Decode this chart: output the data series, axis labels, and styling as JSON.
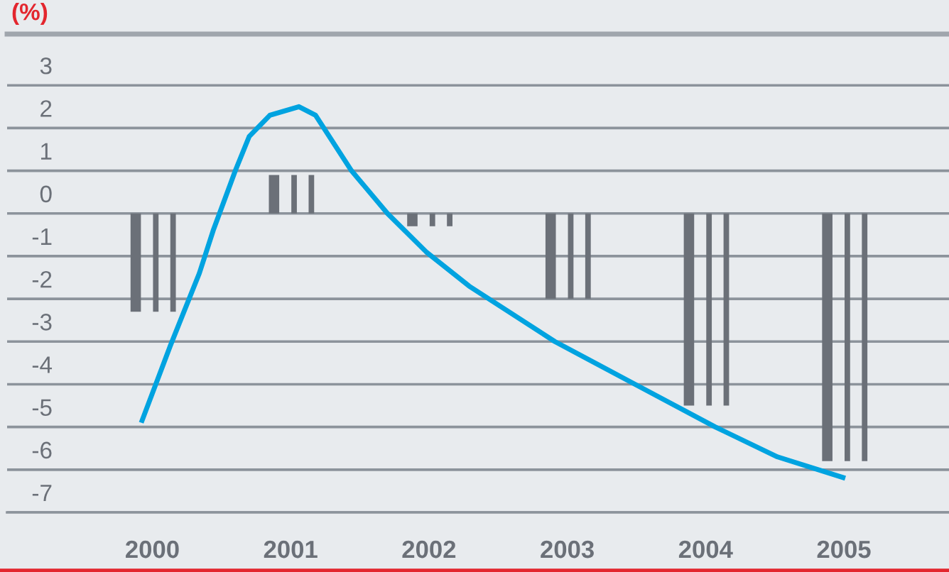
{
  "chart_data": {
    "type": "bar",
    "ylabel": "(%)",
    "x": [
      2000,
      2001,
      2002,
      2003,
      2004,
      2005
    ],
    "series": [
      {
        "color": "#6b7078",
        "values": [
          -2.3,
          0.9,
          -0.3,
          -2.0,
          -4.5,
          -5.8
        ]
      },
      {
        "color": "#6b7078",
        "values": [
          -2.3,
          0.9,
          -0.3,
          -2.0,
          -4.5,
          -5.8
        ]
      },
      {
        "color": "#6b7078",
        "values": [
          -2.3,
          0.9,
          -0.3,
          -2.0,
          -4.5,
          -5.8
        ]
      },
      {
        "type": "line",
        "color": "#00a3e0",
        "x": [
          1999.92,
          2000.13,
          2000.34,
          2000.44,
          2000.6,
          2000.7,
          2000.85,
          2001.06,
          2001.18,
          2001.44,
          2001.7,
          2001.98,
          2002.29,
          2002.91,
          2003.49,
          2004.07,
          2004.52,
          2005.01
        ],
        "values": [
          -4.9,
          -3.1,
          -1.4,
          -0.4,
          1.0,
          1.8,
          2.3,
          2.5,
          2.3,
          1.0,
          0.0,
          -0.9,
          -1.7,
          -3.0,
          -4.0,
          -5.0,
          -5.7,
          -6.2
        ]
      }
    ],
    "xlim": [
      1998.95,
      2005.76
    ],
    "xticks": [
      2000,
      2001,
      2002,
      2003,
      2004,
      2005
    ],
    "ylim": [
      -7,
      4.2
    ],
    "yticks": [
      3,
      2,
      1,
      0,
      -1,
      -2,
      -3,
      -4,
      -5,
      -6,
      -7
    ],
    "grid": "y"
  }
}
